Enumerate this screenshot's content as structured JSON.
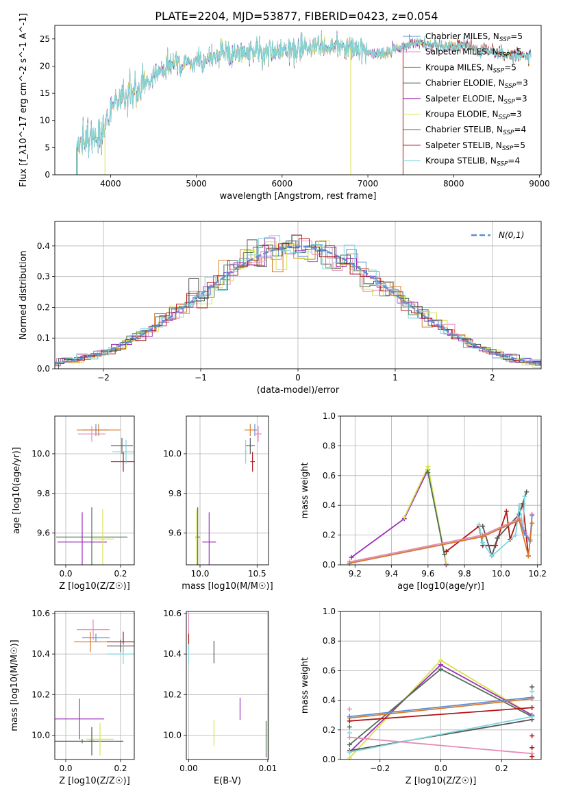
{
  "title": "PLATE=2204, MJD=53877, FIBERID=0423, z=0.054",
  "colors": {
    "c1": "#5b8fd6",
    "c2": "#e889b8",
    "c3": "#d97a2b",
    "c4": "#4f6f52",
    "c5": "#9b2fb8",
    "c6": "#d7e24c",
    "c7": "#555555",
    "c8": "#b01515",
    "c9": "#7fd6dc"
  },
  "chart_data": [
    {
      "type": "line",
      "xlabel": "wavelength [Angstrom, rest frame]",
      "ylabel": "Flux [f_λ10^-17 erg cm^-2 s^-1 A^-1]",
      "xlim": [
        3350,
        9020
      ],
      "ylim": [
        0,
        27.5
      ],
      "xticks": [
        4000,
        5000,
        6000,
        7000,
        8000,
        9000
      ],
      "yticks": [
        0,
        5,
        10,
        15,
        20,
        25
      ],
      "grid": false,
      "legend": "right",
      "series_names": [
        "Chabrier MILES, N_SSP=5",
        "Salpeter MILES, N_SSP=5",
        "Kroupa MILES, N_SSP=5",
        "Chabrier ELODIE, N_SSP=3",
        "Salpeter ELODIE, N_SSP=3",
        "Kroupa ELODIE, N_SSP=3",
        "Chabrier STELIB, N_SSP=4",
        "Salpeter STELIB, N_SSP=5",
        "Kroupa STELIB, N_SSP=4"
      ],
      "spectrum_profile": [
        [
          3600,
          5
        ],
        [
          3700,
          6
        ],
        [
          3800,
          7
        ],
        [
          3900,
          8.5
        ],
        [
          4000,
          12
        ],
        [
          4100,
          14
        ],
        [
          4200,
          15
        ],
        [
          4300,
          16
        ],
        [
          4400,
          17
        ],
        [
          4500,
          18.5
        ],
        [
          4700,
          20
        ],
        [
          4900,
          20.5
        ],
        [
          5100,
          21
        ],
        [
          5300,
          22
        ],
        [
          5500,
          22.5
        ],
        [
          5700,
          22.5
        ],
        [
          5900,
          22.5
        ],
        [
          6100,
          23
        ],
        [
          6300,
          23
        ],
        [
          6500,
          23.5
        ],
        [
          6700,
          23.5
        ],
        [
          6900,
          23.5
        ],
        [
          7100,
          22
        ],
        [
          7300,
          23
        ],
        [
          7500,
          24
        ],
        [
          7700,
          24
        ],
        [
          7900,
          23.5
        ],
        [
          8100,
          24
        ],
        [
          8300,
          23
        ],
        [
          8500,
          22.5
        ],
        [
          8700,
          22
        ],
        [
          8900,
          22
        ]
      ]
    },
    {
      "type": "histogram",
      "xlabel": "(data-model)/error",
      "ylabel": "Normed distribution",
      "xlim": [
        -2.5,
        2.5
      ],
      "ylim": [
        0,
        0.48
      ],
      "xticks": [
        -2,
        -1,
        0,
        1,
        2
      ],
      "yticks": [
        0,
        0.1,
        0.2,
        0.3,
        0.4
      ],
      "grid": true,
      "legend": "top-right",
      "reference_label": "N(0,1)",
      "reference_curve": "gaussian mean 0 sigma 1",
      "bin_width": 0.1
    },
    {
      "type": "scatter",
      "xlabel": "Z [log10(Z/Z☉)]",
      "ylabel": "age [log10(age/yr)]",
      "xlim": [
        -0.04,
        0.25
      ],
      "ylim": [
        9.44,
        10.19
      ],
      "xticks": [
        0.0,
        0.2
      ],
      "yticks": [
        9.6,
        9.8,
        10.0
      ],
      "grid": true,
      "points": [
        {
          "c": "c1",
          "x": 0.11,
          "y": 10.12,
          "xerr": 0.05,
          "yerr": 0.03
        },
        {
          "c": "c2",
          "x": 0.095,
          "y": 10.1,
          "xerr": 0.05,
          "yerr": 0.04
        },
        {
          "c": "c3",
          "x": 0.12,
          "y": 10.12,
          "xerr": 0.08,
          "yerr": 0.03
        },
        {
          "c": "c4",
          "x": 0.095,
          "y": 9.58,
          "xerr": 0.13,
          "yerr": 0.15
        },
        {
          "c": "c5",
          "x": 0.06,
          "y": 9.555,
          "xerr": 0.09,
          "yerr": 0.15
        },
        {
          "c": "c6",
          "x": 0.135,
          "y": 9.57,
          "xerr": 0.04,
          "yerr": 0.15
        },
        {
          "c": "c7",
          "x": 0.205,
          "y": 10.04,
          "xerr": 0.04,
          "yerr": 0.04
        },
        {
          "c": "c8",
          "x": 0.21,
          "y": 9.96,
          "xerr": 0.045,
          "yerr": 0.05
        },
        {
          "c": "c9",
          "x": 0.22,
          "y": 10.01,
          "xerr": 0.05,
          "yerr": 0.06
        }
      ]
    },
    {
      "type": "scatter",
      "xlabel": "mass [log10(M/M☉)]",
      "ylabel": "",
      "xlim": [
        9.88,
        10.6
      ],
      "ylim": [
        9.44,
        10.19
      ],
      "xticks": [
        10.0,
        10.5
      ],
      "yticks": [
        9.6,
        9.8,
        10.0
      ],
      "grid": true,
      "points": [
        {
          "c": "c1",
          "x": 10.48,
          "y": 10.12,
          "xerr": 0.02,
          "yerr": 0.03
        },
        {
          "c": "c2",
          "x": 10.51,
          "y": 10.1,
          "xerr": 0.03,
          "yerr": 0.04
        },
        {
          "c": "c3",
          "x": 10.44,
          "y": 10.12,
          "xerr": 0.05,
          "yerr": 0.03
        },
        {
          "c": "c4",
          "x": 9.98,
          "y": 9.58,
          "xerr": 0.02,
          "yerr": 0.15
        },
        {
          "c": "c5",
          "x": 10.08,
          "y": 9.555,
          "xerr": 0.06,
          "yerr": 0.15
        },
        {
          "c": "c6",
          "x": 9.97,
          "y": 9.57,
          "xerr": 0.01,
          "yerr": 0.15
        },
        {
          "c": "c7",
          "x": 10.44,
          "y": 10.04,
          "xerr": 0.04,
          "yerr": 0.04
        },
        {
          "c": "c8",
          "x": 10.46,
          "y": 9.96,
          "xerr": 0.02,
          "yerr": 0.05
        },
        {
          "c": "c9",
          "x": 10.4,
          "y": 10.01,
          "xerr": 0.01,
          "yerr": 0.06
        }
      ]
    },
    {
      "type": "line",
      "xlabel": "age [log10(age/yr)]",
      "ylabel": "mass weight",
      "xlim": [
        9.12,
        10.22
      ],
      "ylim": [
        0,
        1.0
      ],
      "xticks": [
        9.2,
        9.4,
        9.6,
        9.8,
        10.0,
        10.2
      ],
      "yticks": [
        0.0,
        0.2,
        0.4,
        0.6,
        0.8,
        1.0
      ],
      "grid": true,
      "series": [
        {
          "c": "c5",
          "x": [
            9.18,
            9.47,
            9.6,
            9.7
          ],
          "y": [
            0.05,
            0.31,
            0.64,
            0.0
          ]
        },
        {
          "c": "c6",
          "x": [
            9.47,
            9.6,
            9.7
          ],
          "y": [
            0.32,
            0.66,
            0.01
          ]
        },
        {
          "c": "c4",
          "x": [
            9.6,
            9.69
          ],
          "y": [
            0.62,
            0.07
          ]
        },
        {
          "c": "c8",
          "x": [
            9.7,
            9.88,
            9.9,
            9.97,
            10.03,
            10.05,
            10.12,
            10.15
          ],
          "y": [
            0.09,
            0.26,
            0.13,
            0.13,
            0.36,
            0.17,
            0.41,
            0.06
          ]
        },
        {
          "c": "c7",
          "x": [
            9.9,
            9.95,
            9.98,
            10.1,
            10.14
          ],
          "y": [
            0.26,
            0.06,
            0.18,
            0.34,
            0.49
          ]
        },
        {
          "c": "c9",
          "x": [
            9.88,
            9.9,
            9.95,
            10.08,
            10.1,
            10.12,
            10.13
          ],
          "y": [
            0.27,
            0.15,
            0.06,
            0.2,
            0.4,
            0.25,
            0.46
          ]
        },
        {
          "c": "c2",
          "x": [
            9.17,
            9.9,
            10.1,
            10.13,
            10.16,
            10.17
          ],
          "y": [
            0.02,
            0.2,
            0.31,
            0.22,
            0.17,
            0.34
          ]
        },
        {
          "c": "c1",
          "x": [
            9.17,
            9.9,
            10.1,
            10.13,
            10.16,
            10.17
          ],
          "y": [
            0.01,
            0.19,
            0.3,
            0.21,
            0.16,
            0.33
          ]
        },
        {
          "c": "c3",
          "x": [
            9.17,
            9.9,
            10.1,
            10.15,
            10.17
          ],
          "y": [
            0.01,
            0.19,
            0.3,
            0.06,
            0.28
          ]
        }
      ]
    },
    {
      "type": "scatter",
      "xlabel": "Z [log10(Z/Z☉)]",
      "ylabel": "mass [log10(M/M☉)]",
      "xlim": [
        -0.04,
        0.25
      ],
      "ylim": [
        9.88,
        10.61
      ],
      "xticks": [
        0.0,
        0.2
      ],
      "yticks": [
        10.0,
        10.2,
        10.4,
        10.6
      ],
      "grid": true,
      "points": [
        {
          "c": "c1",
          "x": 0.11,
          "y": 10.48,
          "xerr": 0.05,
          "yerr": 0.02
        },
        {
          "c": "c2",
          "x": 0.1,
          "y": 10.52,
          "xerr": 0.06,
          "yerr": 0.05
        },
        {
          "c": "c3",
          "x": 0.09,
          "y": 10.46,
          "xerr": 0.06,
          "yerr": 0.05
        },
        {
          "c": "c4",
          "x": 0.06,
          "y": 9.97,
          "xerr": 0.15,
          "yerr": 0.01
        },
        {
          "c": "c5",
          "x": 0.05,
          "y": 10.08,
          "xerr": 0.09,
          "yerr": 0.1
        },
        {
          "c": "c6",
          "x": 0.125,
          "y": 9.98,
          "xerr": 0.05,
          "yerr": 0.08
        },
        {
          "c": "c7",
          "x": 0.2,
          "y": 10.44,
          "xerr": 0.05,
          "yerr": 0.03
        },
        {
          "c": "c8",
          "x": 0.21,
          "y": 10.46,
          "xerr": 0.06,
          "yerr": 0.05
        },
        {
          "c": "c9",
          "x": 0.21,
          "y": 10.4,
          "xerr": 0.06,
          "yerr": 0.05
        },
        {
          "c": "c7",
          "x": 0.095,
          "y": 9.97,
          "xerr": 0.01,
          "yerr": 0.07
        }
      ]
    },
    {
      "type": "scatter",
      "xlabel": "E(B-V)",
      "ylabel": "",
      "xlim": [
        -0.0003,
        0.0101
      ],
      "ylim": [
        9.88,
        10.61
      ],
      "xticks": [
        0.0,
        0.01
      ],
      "yticks": [
        10.0,
        10.2,
        10.4,
        10.6
      ],
      "grid": true,
      "points": [
        {
          "c": "c2",
          "x": 0.0,
          "y": 10.55,
          "xerr": 0,
          "yerr": 0.05
        },
        {
          "c": "c8",
          "x": 0.0,
          "y": 10.46,
          "xerr": 0,
          "yerr": 0.04
        },
        {
          "c": "c9",
          "x": 0.0,
          "y": 10.4,
          "xerr": 0,
          "yerr": 0.05
        },
        {
          "c": "c7",
          "x": 0.0032,
          "y": 10.41,
          "xerr": 0,
          "yerr": 0.055
        },
        {
          "c": "c6",
          "x": 0.0032,
          "y": 10.01,
          "xerr": 0,
          "yerr": 0.065
        },
        {
          "c": "c5",
          "x": 0.0065,
          "y": 10.13,
          "xerr": 0,
          "yerr": 0.055
        },
        {
          "c": "c4",
          "x": 0.0098,
          "y": 9.98,
          "xerr": 0,
          "yerr": 0.09
        }
      ]
    },
    {
      "type": "line",
      "xlabel": "Z [log10(Z/Z☉)]",
      "ylabel": "mass weight",
      "xlim": [
        -0.33,
        0.33
      ],
      "ylim": [
        0,
        1.0
      ],
      "xticks": [
        -0.2,
        0.0,
        0.2
      ],
      "yticks": [
        0.0,
        0.2,
        0.4,
        0.6,
        0.8,
        1.0
      ],
      "grid": true,
      "series": [
        {
          "c": "c6",
          "x": [
            -0.3,
            0.0,
            0.3
          ],
          "y": [
            0.01,
            0.67,
            0.3
          ]
        },
        {
          "c": "c5",
          "x": [
            -0.3,
            0.0,
            0.3
          ],
          "y": [
            0.05,
            0.64,
            0.3
          ]
        },
        {
          "c": "c4",
          "x": [
            -0.3,
            0.0,
            0.3
          ],
          "y": [
            0.1,
            0.61,
            0.29
          ]
        },
        {
          "c": "c3",
          "x": [
            -0.3,
            0.3
          ],
          "y": [
            0.28,
            0.41
          ]
        },
        {
          "c": "c1",
          "x": [
            -0.3,
            0.3
          ],
          "y": [
            0.29,
            0.42
          ]
        },
        {
          "c": "c8",
          "x": [
            -0.3,
            0.3
          ],
          "y": [
            0.26,
            0.35
          ]
        },
        {
          "c": "c7",
          "x": [
            -0.3,
            0.3
          ],
          "y": [
            0.06,
            0.27
          ]
        },
        {
          "c": "c9",
          "x": [
            -0.3,
            0.3
          ],
          "y": [
            0.05,
            0.29
          ]
        },
        {
          "c": "c2",
          "x": [
            -0.3,
            0.3
          ],
          "y": [
            0.15,
            0.04
          ]
        }
      ],
      "markers": [
        {
          "c": "c7",
          "x": 0.3,
          "y": 0.49
        },
        {
          "c": "c9",
          "x": 0.3,
          "y": 0.46
        },
        {
          "c": "c8",
          "x": 0.3,
          "y": 0.16
        },
        {
          "c": "c8",
          "x": 0.3,
          "y": 0.08
        },
        {
          "c": "c8",
          "x": 0.3,
          "y": 0.02
        },
        {
          "c": "c2",
          "x": -0.3,
          "y": 0.34
        },
        {
          "c": "c9",
          "x": -0.3,
          "y": 0.18
        },
        {
          "c": "c4",
          "x": -0.3,
          "y": 0.22
        }
      ]
    }
  ]
}
